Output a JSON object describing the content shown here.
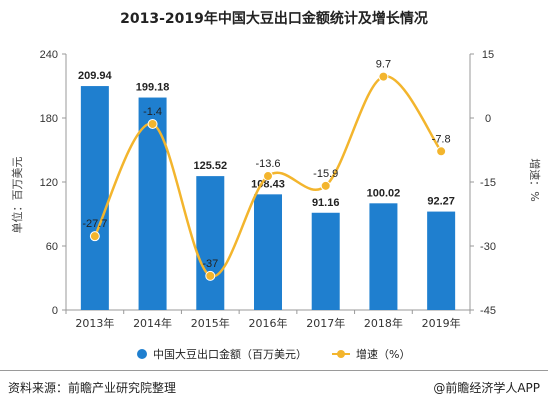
{
  "title": "2013-2019年中国大豆出口金额统计及增长情况",
  "footer": {
    "source": "资料来源：前瞻产业研究院整理",
    "brand": "@前瞻经济学人APP"
  },
  "colors": {
    "bar": "#1f7fcf",
    "line": "#f3b52d",
    "axis": "#999999"
  },
  "chart_data": {
    "type": "bar",
    "categories": [
      "2013年",
      "2014年",
      "2015年",
      "2016年",
      "2017年",
      "2018年",
      "2019年"
    ],
    "series": [
      {
        "name": "中国大豆出口金额（百万美元）",
        "type": "bar",
        "axis": "left",
        "values": [
          209.94,
          199.18,
          125.52,
          108.43,
          91.16,
          100.02,
          92.27
        ],
        "labels": [
          "209.94",
          "199.18",
          "125.52",
          "108.43",
          "91.16",
          "100.02",
          "92.27"
        ]
      },
      {
        "name": "增速（%）",
        "type": "line",
        "axis": "right",
        "values": [
          -27.7,
          -1.4,
          -37,
          -13.6,
          -15.9,
          9.7,
          -7.8
        ],
        "labels": [
          "-27.7",
          "-1.4",
          "-37",
          "-13.6",
          "-15.9",
          "9.7",
          "-7.8"
        ]
      }
    ],
    "ylabel_left": "单位：百万美元",
    "ylabel_right": "增速：%",
    "ylim_left": [
      0,
      240
    ],
    "yticks_left": [
      "0",
      "60",
      "120",
      "180",
      "240"
    ],
    "ylim_right": [
      -45,
      15
    ],
    "yticks_right": [
      "-45",
      "-30",
      "-15",
      "0",
      "15"
    ],
    "grid": false,
    "legend_position": "bottom"
  }
}
